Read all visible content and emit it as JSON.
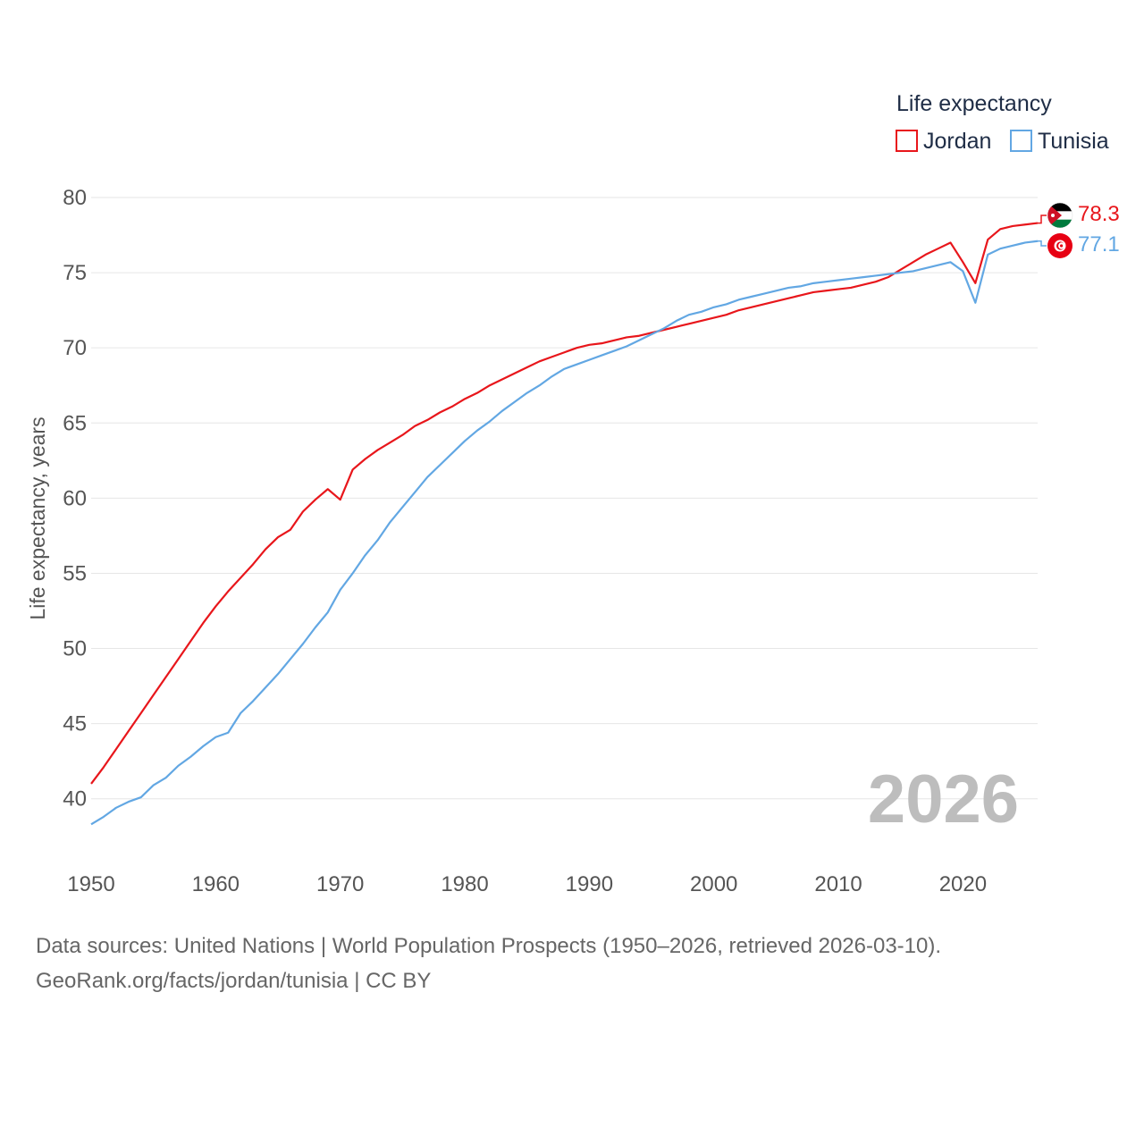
{
  "colors": {
    "jordan": "#e8161b",
    "tunisia": "#62a7e3",
    "grid": "#e6e6e6",
    "year": "#bdbdbd"
  },
  "chart_data": {
    "type": "line",
    "title": "",
    "legend_title": "Life expectancy",
    "ylabel": "Life expectancy, years",
    "xlabel": "",
    "xlim": [
      1950,
      2026
    ],
    "ylim": [
      36,
      80
    ],
    "x_ticks": [
      "1950",
      "1960",
      "1970",
      "1980",
      "1990",
      "2000",
      "2010",
      "2020"
    ],
    "y_ticks": [
      "40",
      "45",
      "50",
      "55",
      "60",
      "65",
      "70",
      "75",
      "80"
    ],
    "year_watermark": "2026",
    "x": [
      1950,
      1951,
      1952,
      1953,
      1954,
      1955,
      1956,
      1957,
      1958,
      1959,
      1960,
      1961,
      1962,
      1963,
      1964,
      1965,
      1966,
      1967,
      1968,
      1969,
      1970,
      1971,
      1972,
      1973,
      1974,
      1975,
      1976,
      1977,
      1978,
      1979,
      1980,
      1981,
      1982,
      1983,
      1984,
      1985,
      1986,
      1987,
      1988,
      1989,
      1990,
      1991,
      1992,
      1993,
      1994,
      1995,
      1996,
      1997,
      1998,
      1999,
      2000,
      2001,
      2002,
      2003,
      2004,
      2005,
      2006,
      2007,
      2008,
      2009,
      2010,
      2011,
      2012,
      2013,
      2014,
      2015,
      2016,
      2017,
      2018,
      2019,
      2020,
      2021,
      2022,
      2023,
      2024,
      2025,
      2026
    ],
    "series": [
      {
        "name": "Jordan",
        "color_key": "jordan",
        "end_label": "78.3",
        "values": [
          41.0,
          42.1,
          43.3,
          44.5,
          45.7,
          46.9,
          48.1,
          49.3,
          50.5,
          51.7,
          52.8,
          53.8,
          54.7,
          55.6,
          56.6,
          57.4,
          57.9,
          59.1,
          59.9,
          60.6,
          59.9,
          61.9,
          62.6,
          63.2,
          63.7,
          64.2,
          64.8,
          65.2,
          65.7,
          66.1,
          66.6,
          67.0,
          67.5,
          67.9,
          68.3,
          68.7,
          69.1,
          69.4,
          69.7,
          70.0,
          70.2,
          70.3,
          70.5,
          70.7,
          70.8,
          71.0,
          71.2,
          71.4,
          71.6,
          71.8,
          72.0,
          72.2,
          72.5,
          72.7,
          72.9,
          73.1,
          73.3,
          73.5,
          73.7,
          73.8,
          73.9,
          74.0,
          74.2,
          74.4,
          74.7,
          75.2,
          75.7,
          76.2,
          76.6,
          77.0,
          75.7,
          74.3,
          77.2,
          77.9,
          78.1,
          78.2,
          78.3
        ]
      },
      {
        "name": "Tunisia",
        "color_key": "tunisia",
        "end_label": "77.1",
        "values": [
          38.3,
          38.8,
          39.4,
          39.8,
          40.1,
          40.9,
          41.4,
          42.2,
          42.8,
          43.5,
          44.1,
          44.4,
          45.7,
          46.5,
          47.4,
          48.3,
          49.3,
          50.3,
          51.4,
          52.4,
          53.9,
          55.0,
          56.2,
          57.2,
          58.4,
          59.4,
          60.4,
          61.4,
          62.2,
          63.0,
          63.8,
          64.5,
          65.1,
          65.8,
          66.4,
          67.0,
          67.5,
          68.1,
          68.6,
          68.9,
          69.2,
          69.5,
          69.8,
          70.1,
          70.5,
          70.9,
          71.3,
          71.8,
          72.2,
          72.4,
          72.7,
          72.9,
          73.2,
          73.4,
          73.6,
          73.8,
          74.0,
          74.1,
          74.3,
          74.4,
          74.5,
          74.6,
          74.7,
          74.8,
          74.9,
          75.0,
          75.1,
          75.3,
          75.5,
          75.7,
          75.1,
          73.0,
          76.2,
          76.6,
          76.8,
          77.0,
          77.1
        ]
      }
    ]
  },
  "footer": {
    "line1": "Data sources: United Nations | World Population Prospects (1950–2026, retrieved 2026-03-10).",
    "line2": "GeoRank.org/facts/jordan/tunisia | CC BY"
  }
}
